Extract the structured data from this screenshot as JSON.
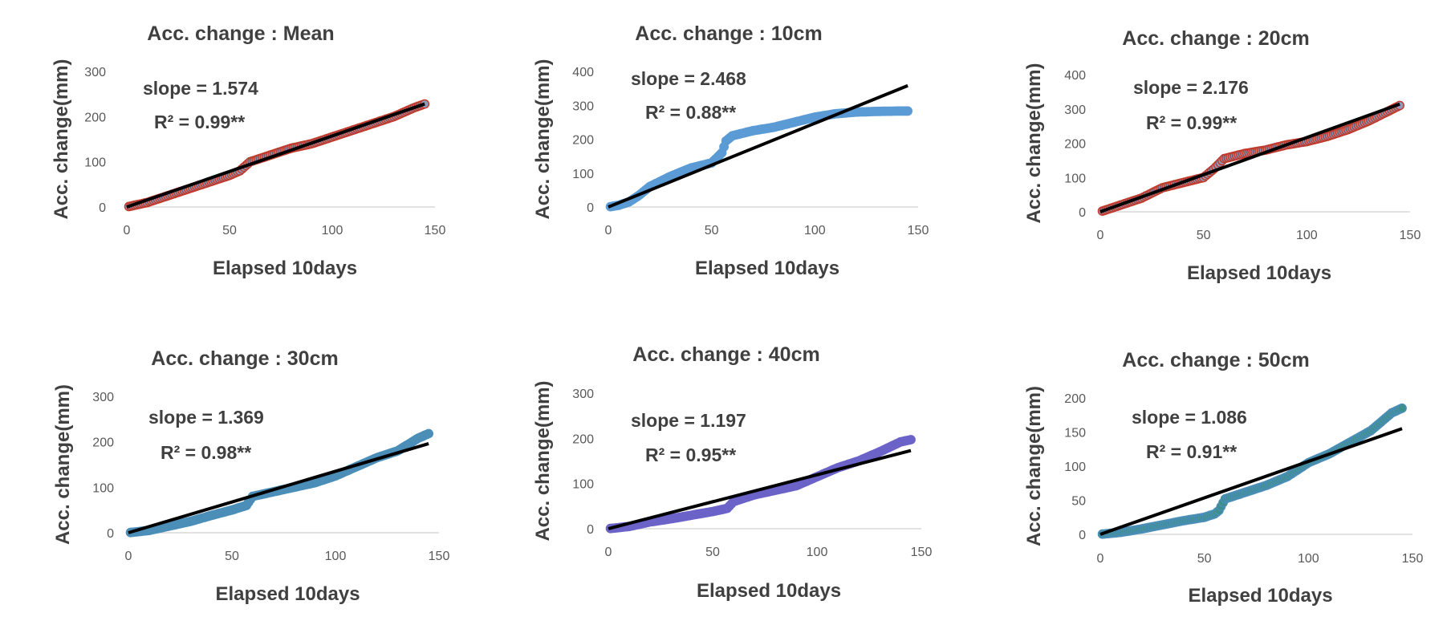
{
  "colors": {
    "blue": "#5b9bd5",
    "red": "#c0392b",
    "slate": "#8e9ab8",
    "teal": "#4b8eb8",
    "purple": "#6b63c8",
    "green": "#3d8f8c",
    "trend": "#000000"
  },
  "chart_data": [
    {
      "type": "scatter",
      "title": "Acc. change : Mean",
      "xlabel": "Elapsed 10days",
      "ylabel": "Acc. change(mm)",
      "xlim": [
        0,
        150
      ],
      "ylim": [
        0,
        300
      ],
      "xticks": [
        0,
        50,
        100,
        150
      ],
      "yticks": [
        0,
        100,
        200,
        300
      ],
      "annotations": {
        "slope": "slope = 1.574",
        "r2": "R² = 0.99**"
      },
      "marker": {
        "fill": "slate",
        "edge": "red"
      },
      "trendline": {
        "x": [
          0,
          145
        ],
        "y": [
          0,
          228
        ]
      },
      "series_knots": {
        "x": [
          0,
          10,
          20,
          30,
          40,
          50,
          55,
          60,
          70,
          80,
          90,
          100,
          110,
          120,
          130,
          140,
          145
        ],
        "y": [
          0,
          10,
          25,
          40,
          55,
          70,
          80,
          100,
          115,
          130,
          140,
          155,
          170,
          185,
          200,
          220,
          228
        ]
      }
    },
    {
      "type": "scatter",
      "title": "Acc. change : 10cm",
      "xlabel": "Elapsed 10days",
      "ylabel": "Acc. change(mm)",
      "xlim": [
        0,
        150
      ],
      "ylim": [
        0,
        400
      ],
      "xticks": [
        0,
        50,
        100,
        150
      ],
      "yticks": [
        0,
        100,
        200,
        300,
        400
      ],
      "annotations": {
        "slope": "slope = 2.468",
        "r2": "R² = 0.88**"
      },
      "marker": {
        "fill": "blue",
        "edge": "blue"
      },
      "trendline": {
        "x": [
          0,
          145
        ],
        "y": [
          0,
          358
        ]
      },
      "series_knots": {
        "x": [
          0,
          5,
          10,
          15,
          20,
          30,
          40,
          50,
          55,
          57,
          60,
          70,
          80,
          90,
          100,
          110,
          120,
          130,
          140,
          145
        ],
        "y": [
          0,
          5,
          15,
          35,
          60,
          90,
          115,
          130,
          160,
          195,
          210,
          225,
          235,
          250,
          265,
          275,
          280,
          282,
          283,
          283
        ]
      }
    },
    {
      "type": "scatter",
      "title": "Acc. change : 20cm",
      "xlabel": "Elapsed 10days",
      "ylabel": "Acc. change(mm)",
      "xlim": [
        0,
        150
      ],
      "ylim": [
        0,
        400
      ],
      "xticks": [
        0,
        50,
        100,
        150
      ],
      "yticks": [
        0,
        100,
        200,
        300,
        400
      ],
      "annotations": {
        "slope": "slope = 2.176",
        "r2": "R² = 0.99**"
      },
      "marker": {
        "fill": "slate",
        "edge": "red"
      },
      "trendline": {
        "x": [
          0,
          145
        ],
        "y": [
          0,
          314
        ]
      },
      "series_knots": {
        "x": [
          0,
          10,
          20,
          30,
          40,
          50,
          55,
          60,
          70,
          80,
          90,
          100,
          110,
          120,
          130,
          140,
          145
        ],
        "y": [
          0,
          20,
          40,
          70,
          85,
          100,
          125,
          155,
          170,
          180,
          195,
          205,
          220,
          240,
          265,
          295,
          310
        ]
      }
    },
    {
      "type": "scatter",
      "title": "Acc. change : 30cm",
      "xlabel": "Elapsed 10days",
      "ylabel": "Acc. change(mm)",
      "xlim": [
        0,
        150
      ],
      "ylim": [
        0,
        300
      ],
      "xticks": [
        0,
        50,
        100,
        150
      ],
      "yticks": [
        0,
        100,
        200,
        300
      ],
      "annotations": {
        "slope": "slope = 1.369",
        "r2": "R² = 0.98**"
      },
      "marker": {
        "fill": "teal",
        "edge": "teal"
      },
      "trendline": {
        "x": [
          0,
          145
        ],
        "y": [
          0,
          196
        ]
      },
      "series_knots": {
        "x": [
          0,
          10,
          20,
          30,
          40,
          50,
          57,
          60,
          70,
          80,
          90,
          100,
          110,
          120,
          130,
          140,
          145
        ],
        "y": [
          0,
          5,
          15,
          25,
          38,
          50,
          60,
          80,
          90,
          100,
          110,
          125,
          145,
          165,
          180,
          208,
          218
        ]
      }
    },
    {
      "type": "scatter",
      "title": "Acc. change : 40cm",
      "xlabel": "Elapsed 10days",
      "ylabel": "Acc. change(mm)",
      "xlim": [
        0,
        150
      ],
      "ylim": [
        0,
        300
      ],
      "xticks": [
        0,
        50,
        100,
        150
      ],
      "yticks": [
        0,
        100,
        200,
        300
      ],
      "annotations": {
        "slope": "slope = 1.197",
        "r2": "R² = 0.95**"
      },
      "marker": {
        "fill": "purple",
        "edge": "purple"
      },
      "trendline": {
        "x": [
          0,
          145
        ],
        "y": [
          0,
          173
        ]
      },
      "series_knots": {
        "x": [
          0,
          10,
          20,
          30,
          40,
          50,
          57,
          60,
          70,
          80,
          90,
          100,
          110,
          120,
          130,
          140,
          145
        ],
        "y": [
          0,
          5,
          15,
          22,
          30,
          38,
          45,
          60,
          75,
          85,
          95,
          115,
          135,
          150,
          170,
          192,
          197
        ]
      }
    },
    {
      "type": "scatter",
      "title": "Acc. change : 50cm",
      "xlabel": "Elapsed 10days",
      "ylabel": "Acc. change(mm)",
      "xlim": [
        0,
        150
      ],
      "ylim": [
        0,
        200
      ],
      "xticks": [
        0,
        50,
        100,
        150
      ],
      "yticks": [
        0,
        50,
        100,
        150,
        200
      ],
      "annotations": {
        "slope": "slope = 1.086",
        "r2": "R² = 0.91**"
      },
      "marker": {
        "fill": "green",
        "edge": "teal"
      },
      "trendline": {
        "x": [
          0,
          145
        ],
        "y": [
          0,
          155
        ]
      },
      "series_knots": {
        "x": [
          0,
          10,
          20,
          30,
          40,
          50,
          55,
          57,
          60,
          70,
          80,
          90,
          100,
          110,
          120,
          130,
          140,
          145
        ],
        "y": [
          0,
          3,
          8,
          14,
          20,
          25,
          30,
          35,
          52,
          62,
          72,
          85,
          105,
          118,
          135,
          152,
          178,
          185
        ]
      }
    }
  ]
}
